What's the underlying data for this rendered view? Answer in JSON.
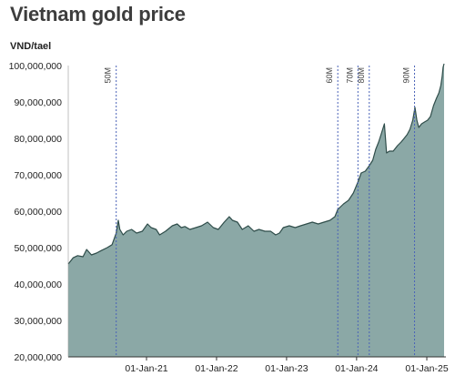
{
  "title": "Vietnam gold price",
  "unit_label": "VND/tael",
  "colors": {
    "area_fill": "#8ba8a6",
    "line": "#2f4d4a",
    "marker": "#4a63b8",
    "text": "#222222"
  },
  "chart_data": {
    "type": "area",
    "ylabel": "VND/tael",
    "ylim": [
      20000000,
      100000000
    ],
    "xlim": [
      "2019-11-20",
      "2025-04-01"
    ],
    "y_ticks": [
      {
        "value": 20000000,
        "label": "20,000,000"
      },
      {
        "value": 30000000,
        "label": "30,000,000"
      },
      {
        "value": 40000000,
        "label": "40,000,000"
      },
      {
        "value": 50000000,
        "label": "50,000,000"
      },
      {
        "value": 60000000,
        "label": "60,000,000"
      },
      {
        "value": 70000000,
        "label": "70,000,000"
      },
      {
        "value": 80000000,
        "label": "80,000,000"
      },
      {
        "value": 90000000,
        "label": "90,000,000"
      },
      {
        "value": 100000000,
        "label": "100,000,000"
      }
    ],
    "x_ticks": [
      {
        "date": "2021-01-01",
        "label": "01-Jan-21"
      },
      {
        "date": "2022-01-01",
        "label": "01-Jan-22"
      },
      {
        "date": "2023-01-01",
        "label": "01-Jan-23"
      },
      {
        "date": "2024-01-01",
        "label": "01-Jan-24"
      },
      {
        "date": "2025-01-01",
        "label": "01-Jan-25"
      }
    ],
    "markers": [
      {
        "date": "2020-07-27",
        "label": "50M"
      },
      {
        "date": "2023-09-25",
        "label": "60M"
      },
      {
        "date": "2024-01-08",
        "label": "70M"
      },
      {
        "date": "2024-03-07",
        "label": "80M"
      },
      {
        "date": "2024-10-29",
        "label": "90M"
      }
    ],
    "series": [
      {
        "points": [
          [
            "2019-11-20",
            45500000
          ],
          [
            "2019-12-15",
            47200000
          ],
          [
            "2020-01-08",
            47800000
          ],
          [
            "2020-02-05",
            47500000
          ],
          [
            "2020-02-24",
            49500000
          ],
          [
            "2020-03-20",
            48000000
          ],
          [
            "2020-04-15",
            48500000
          ],
          [
            "2020-05-10",
            49200000
          ],
          [
            "2020-06-10",
            50000000
          ],
          [
            "2020-07-05",
            50800000
          ],
          [
            "2020-07-27",
            54000000
          ],
          [
            "2020-08-07",
            57500000
          ],
          [
            "2020-08-15",
            55000000
          ],
          [
            "2020-09-01",
            53500000
          ],
          [
            "2020-09-20",
            54500000
          ],
          [
            "2020-10-15",
            55000000
          ],
          [
            "2020-11-10",
            54000000
          ],
          [
            "2020-12-10",
            54500000
          ],
          [
            "2021-01-06",
            56500000
          ],
          [
            "2021-01-25",
            55500000
          ],
          [
            "2021-02-20",
            55000000
          ],
          [
            "2021-03-10",
            53500000
          ],
          [
            "2021-04-10",
            54500000
          ],
          [
            "2021-05-15",
            56000000
          ],
          [
            "2021-06-10",
            56500000
          ],
          [
            "2021-07-01",
            55500000
          ],
          [
            "2021-07-20",
            55800000
          ],
          [
            "2021-08-15",
            55000000
          ],
          [
            "2021-09-15",
            55500000
          ],
          [
            "2021-10-15",
            56000000
          ],
          [
            "2021-11-15",
            57000000
          ],
          [
            "2021-12-15",
            55500000
          ],
          [
            "2022-01-10",
            55000000
          ],
          [
            "2022-02-10",
            57000000
          ],
          [
            "2022-03-08",
            58500000
          ],
          [
            "2022-03-25",
            57500000
          ],
          [
            "2022-04-20",
            57000000
          ],
          [
            "2022-05-15",
            55000000
          ],
          [
            "2022-06-15",
            56000000
          ],
          [
            "2022-07-15",
            54500000
          ],
          [
            "2022-08-10",
            55000000
          ],
          [
            "2022-09-10",
            54500000
          ],
          [
            "2022-10-10",
            54500000
          ],
          [
            "2022-11-05",
            53500000
          ],
          [
            "2022-11-25",
            54000000
          ],
          [
            "2022-12-15",
            55500000
          ],
          [
            "2023-01-15",
            56000000
          ],
          [
            "2023-02-15",
            55500000
          ],
          [
            "2023-03-15",
            56000000
          ],
          [
            "2023-04-15",
            56500000
          ],
          [
            "2023-05-15",
            57000000
          ],
          [
            "2023-06-15",
            56500000
          ],
          [
            "2023-07-15",
            57000000
          ],
          [
            "2023-08-15",
            57500000
          ],
          [
            "2023-09-10",
            58500000
          ],
          [
            "2023-09-25",
            60500000
          ],
          [
            "2023-10-25",
            62000000
          ],
          [
            "2023-11-20",
            63000000
          ],
          [
            "2023-12-15",
            65000000
          ],
          [
            "2024-01-08",
            68000000
          ],
          [
            "2024-01-25",
            70500000
          ],
          [
            "2024-02-15",
            71000000
          ],
          [
            "2024-03-07",
            72500000
          ],
          [
            "2024-03-25",
            74000000
          ],
          [
            "2024-04-10",
            77000000
          ],
          [
            "2024-04-25",
            79000000
          ],
          [
            "2024-05-10",
            81500000
          ],
          [
            "2024-05-25",
            84000000
          ],
          [
            "2024-06-05",
            76000000
          ],
          [
            "2024-06-20",
            76500000
          ],
          [
            "2024-07-10",
            76500000
          ],
          [
            "2024-08-01",
            78000000
          ],
          [
            "2024-08-20",
            79000000
          ],
          [
            "2024-09-05",
            80000000
          ],
          [
            "2024-09-20",
            81000000
          ],
          [
            "2024-10-05",
            82500000
          ],
          [
            "2024-10-20",
            85000000
          ],
          [
            "2024-10-31",
            88500000
          ],
          [
            "2024-11-10",
            85000000
          ],
          [
            "2024-11-20",
            83000000
          ],
          [
            "2024-12-05",
            84000000
          ],
          [
            "2024-12-20",
            84500000
          ],
          [
            "2025-01-05",
            85000000
          ],
          [
            "2025-01-20",
            86000000
          ],
          [
            "2025-02-05",
            89000000
          ],
          [
            "2025-02-20",
            91000000
          ],
          [
            "2025-03-05",
            92500000
          ],
          [
            "2025-03-15",
            94500000
          ],
          [
            "2025-03-22",
            97000000
          ],
          [
            "2025-03-27",
            99500000
          ],
          [
            "2025-04-01",
            100500000
          ]
        ]
      }
    ]
  }
}
